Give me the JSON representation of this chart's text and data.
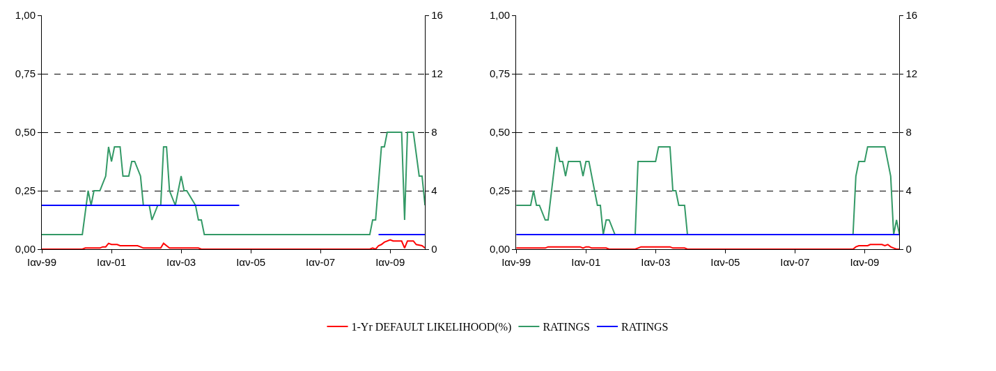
{
  "chart_data": [
    {
      "type": "line",
      "xlim": [
        "1999-01",
        "2010-01"
      ],
      "xticks": [
        {
          "value": "1999-01",
          "label": "Ιαν-99"
        },
        {
          "value": "2001-01",
          "label": "Ιαν-01"
        },
        {
          "value": "2003-01",
          "label": "Ιαν-03"
        },
        {
          "value": "2005-01",
          "label": "Ιαν-05"
        },
        {
          "value": "2007-01",
          "label": "Ιαν-07"
        },
        {
          "value": "2009-01",
          "label": "Ιαν-09"
        }
      ],
      "ylim": [
        0,
        1
      ],
      "yticks": [
        {
          "value": 0,
          "label": "0,00"
        },
        {
          "value": 0.25,
          "label": "0,25"
        },
        {
          "value": 0.5,
          "label": "0,50"
        },
        {
          "value": 0.75,
          "label": "0,75"
        },
        {
          "value": 1,
          "label": "1,00"
        }
      ],
      "y2lim": [
        0,
        16
      ],
      "y2ticks": [
        0,
        4,
        8,
        12,
        16
      ],
      "grid": "y",
      "legend": "bottom",
      "marker": "none",
      "line_style": "solid",
      "series": [
        {
          "name": "1-Yr DEFAULT LIKELIHOOD(%)",
          "color": "#ff0000",
          "axis": "y",
          "x": [
            "1999-01",
            "2000-03",
            "2000-04",
            "2000-09",
            "2000-10",
            "2000-11",
            "2000-12",
            "2001-01",
            "2001-03",
            "2001-04",
            "2001-10",
            "2001-11",
            "2001-12",
            "2002-06",
            "2002-07",
            "2002-08",
            "2002-09",
            "2003-07",
            "2003-08",
            "2008-06",
            "2008-07",
            "2008-08",
            "2008-09",
            "2008-10",
            "2008-11",
            "2009-01",
            "2009-02",
            "2009-05",
            "2009-06",
            "2009-07",
            "2009-09",
            "2009-10",
            "2009-12",
            "2010-01"
          ],
          "values": [
            0,
            0,
            0.005,
            0.005,
            0.01,
            0.01,
            0.025,
            0.02,
            0.02,
            0.015,
            0.015,
            0.01,
            0.005,
            0.005,
            0.025,
            0.015,
            0.005,
            0.005,
            0,
            0,
            0.005,
            0,
            0.015,
            0.02,
            0.03,
            0.04,
            0.035,
            0.035,
            0.005,
            0.035,
            0.035,
            0.02,
            0.015,
            0.005
          ]
        },
        {
          "name": "RATINGS",
          "color": "#339966",
          "axis": "y2",
          "x": [
            "1999-01",
            "2000-03",
            "2000-05",
            "2000-06",
            "2000-07",
            "2000-09",
            "2000-11",
            "2000-12",
            "2001-01",
            "2001-02",
            "2001-04",
            "2001-05",
            "2001-07",
            "2001-08",
            "2001-09",
            "2001-11",
            "2001-12",
            "2002-02",
            "2002-03",
            "2002-05",
            "2002-06",
            "2002-07",
            "2002-08",
            "2002-09",
            "2002-11",
            "2003-01",
            "2003-02",
            "2003-03",
            "2003-06",
            "2003-07",
            "2003-08",
            "2003-09",
            "2008-06",
            "2008-07",
            "2008-08",
            "2008-10",
            "2008-11",
            "2008-12",
            "2009-05",
            "2009-06",
            "2009-07",
            "2009-09",
            "2009-11",
            "2009-12",
            "2010-01"
          ],
          "values": [
            1,
            1,
            4,
            3,
            4,
            4,
            5,
            7,
            6,
            7,
            7,
            5,
            5,
            6,
            6,
            5,
            3,
            3,
            2,
            3,
            3,
            7,
            7,
            4,
            3,
            5,
            4,
            4,
            3,
            2,
            2,
            1,
            1,
            2,
            2,
            7,
            7,
            8,
            8,
            2,
            8,
            8,
            5,
            5,
            3
          ]
        },
        {
          "name": "RATINGS",
          "color": "#0000ff",
          "axis": "y2",
          "x": [
            "1999-01",
            "2004-09",
            "2006-01",
            "2008-09",
            "2010-01"
          ],
          "values": [
            3,
            3,
            null,
            1,
            1
          ]
        }
      ]
    },
    {
      "type": "line",
      "xlim": [
        "1999-01",
        "2010-01"
      ],
      "xticks": [
        {
          "value": "1999-01",
          "label": "Ιαν-99"
        },
        {
          "value": "2001-01",
          "label": "Ιαν-01"
        },
        {
          "value": "2003-01",
          "label": "Ιαν-03"
        },
        {
          "value": "2005-01",
          "label": "Ιαν-05"
        },
        {
          "value": "2007-01",
          "label": "Ιαν-07"
        },
        {
          "value": "2009-01",
          "label": "Ιαν-09"
        }
      ],
      "ylim": [
        0,
        1
      ],
      "yticks": [
        {
          "value": 0,
          "label": "0,00"
        },
        {
          "value": 0.25,
          "label": "0,25"
        },
        {
          "value": 0.5,
          "label": "0,50"
        },
        {
          "value": 0.75,
          "label": "0,75"
        },
        {
          "value": 1,
          "label": "1,00"
        }
      ],
      "y2lim": [
        0,
        16
      ],
      "y2ticks": [
        0,
        4,
        8,
        12,
        16
      ],
      "grid": "y",
      "marker": "none",
      "line_style": "solid",
      "series": [
        {
          "color": "#ff0000",
          "axis": "y",
          "x": [
            "1999-01",
            "1999-11",
            "1999-12",
            "2000-11",
            "2000-12",
            "2001-01",
            "2001-02",
            "2001-03",
            "2001-08",
            "2001-09",
            "2002-06",
            "2002-07",
            "2002-08",
            "2003-06",
            "2003-07",
            "2003-11",
            "2003-12",
            "2008-09",
            "2008-10",
            "2008-11",
            "2009-02",
            "2009-03",
            "2009-07",
            "2009-08",
            "2009-09",
            "2009-10",
            "2009-11",
            "2009-12",
            "2010-01"
          ],
          "values": [
            0.005,
            0.005,
            0.01,
            0.01,
            0.005,
            0.01,
            0.01,
            0.005,
            0.005,
            0,
            0,
            0.005,
            0.01,
            0.01,
            0.005,
            0.005,
            0,
            0,
            0.01,
            0.015,
            0.015,
            0.02,
            0.02,
            0.015,
            0.02,
            0.01,
            0.005,
            0,
            0
          ]
        },
        {
          "color": "#339966",
          "axis": "y2",
          "x": [
            "1999-01",
            "1999-06",
            "1999-07",
            "1999-08",
            "1999-09",
            "1999-11",
            "1999-12",
            "2000-03",
            "2000-04",
            "2000-05",
            "2000-06",
            "2000-07",
            "2000-11",
            "2000-12",
            "2001-01",
            "2001-02",
            "2001-04",
            "2001-05",
            "2001-06",
            "2001-07",
            "2001-08",
            "2001-09",
            "2001-11",
            "2002-06",
            "2002-07",
            "2003-01",
            "2003-02",
            "2003-06",
            "2003-07",
            "2003-08",
            "2003-09",
            "2003-11",
            "2003-12",
            "2008-09",
            "2008-10",
            "2008-11",
            "2009-01",
            "2009-02",
            "2009-08",
            "2009-10",
            "2009-11",
            "2009-12",
            "2010-01"
          ],
          "values": [
            3,
            3,
            4,
            3,
            3,
            2,
            2,
            7,
            6,
            6,
            5,
            6,
            6,
            5,
            6,
            6,
            4,
            3,
            3,
            1,
            2,
            2,
            1,
            1,
            6,
            6,
            7,
            7,
            4,
            4,
            3,
            3,
            1,
            1,
            5,
            6,
            6,
            7,
            7,
            5,
            1,
            2,
            1
          ]
        },
        {
          "color": "#0000ff",
          "axis": "y2",
          "x": [
            "1999-01",
            "2010-01"
          ],
          "values": [
            1,
            1
          ]
        }
      ]
    }
  ]
}
